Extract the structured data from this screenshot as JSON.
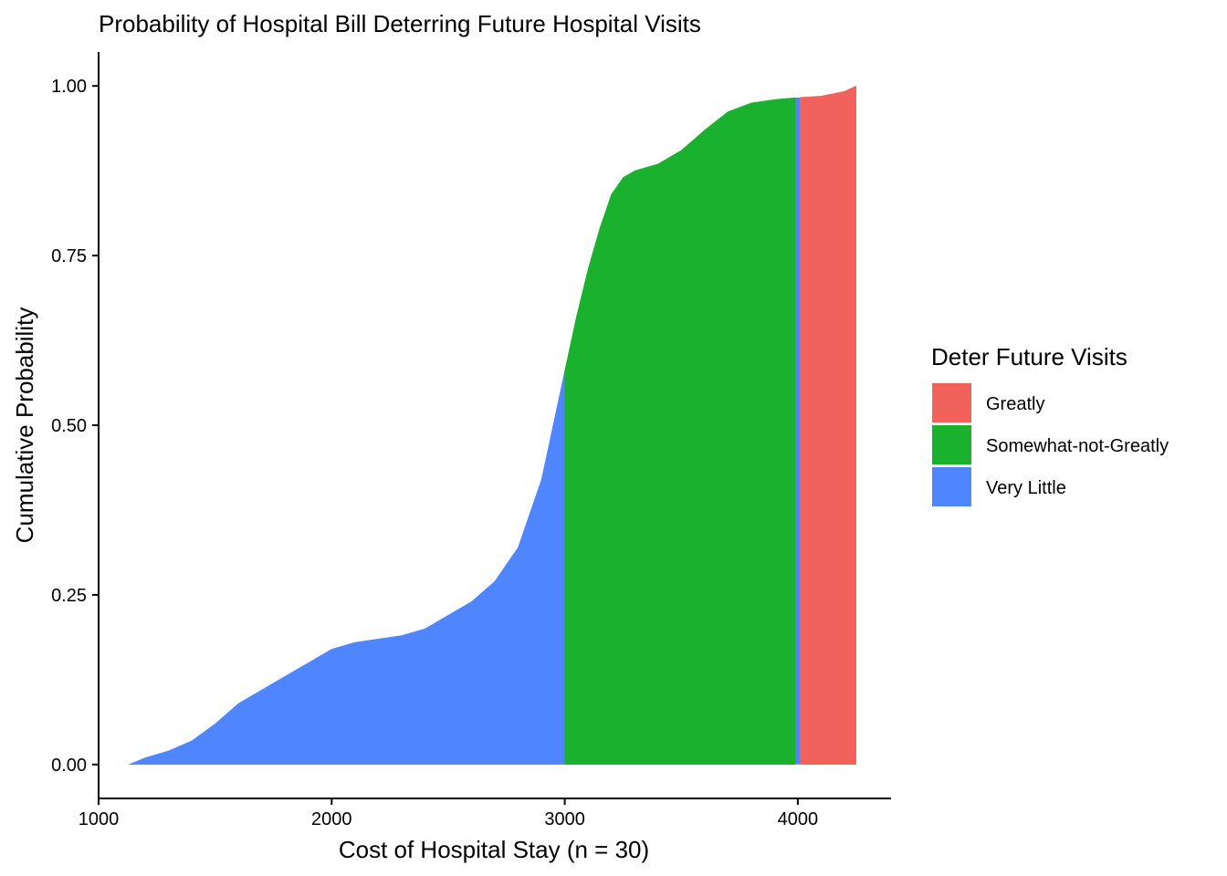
{
  "chart_data": {
    "type": "area",
    "title": "Probability of Hospital Bill Deterring Future Hospital Visits",
    "xlabel": "Cost of Hospital Stay (n = 30)",
    "ylabel": "Cumulative Probability",
    "xlim": [
      1000,
      4400
    ],
    "ylim": [
      -0.05,
      1.05
    ],
    "x_ticks": [
      1000,
      2000,
      3000,
      4000
    ],
    "x_tick_labels": [
      "1000",
      "2000",
      "3000",
      "4000"
    ],
    "y_ticks": [
      0,
      0.25,
      0.5,
      0.75,
      1.0
    ],
    "y_tick_labels": [
      "0.00",
      "0.25",
      "0.50",
      "0.75",
      "1.00"
    ],
    "grid": false,
    "legend": {
      "title": "Deter Future Visits",
      "position": "right",
      "entries": [
        "Greatly",
        "Somewhat-not-Greatly",
        "Very Little"
      ]
    },
    "curve": {
      "x": [
        1130,
        1200,
        1300,
        1400,
        1500,
        1600,
        1700,
        1800,
        1900,
        2000,
        2100,
        2200,
        2300,
        2400,
        2500,
        2600,
        2700,
        2800,
        2900,
        3000,
        3050,
        3100,
        3150,
        3200,
        3250,
        3300,
        3400,
        3500,
        3600,
        3700,
        3800,
        3900,
        4000,
        4100,
        4200,
        4250
      ],
      "y": [
        0.0,
        0.01,
        0.02,
        0.035,
        0.06,
        0.09,
        0.11,
        0.13,
        0.15,
        0.17,
        0.18,
        0.185,
        0.19,
        0.2,
        0.22,
        0.24,
        0.27,
        0.32,
        0.42,
        0.58,
        0.66,
        0.73,
        0.79,
        0.84,
        0.865,
        0.875,
        0.885,
        0.905,
        0.935,
        0.962,
        0.975,
        0.98,
        0.983,
        0.985,
        0.992,
        1.0
      ]
    },
    "series": [
      {
        "name": "Very Little",
        "color": "#4F86FF",
        "x_range": [
          1130,
          3000
        ]
      },
      {
        "name": "Somewhat-not-Greatly",
        "color": "#1AB12F",
        "x_range": [
          3000,
          3990
        ]
      },
      {
        "name": "Greatly",
        "color": "#F2625C",
        "x_range": [
          4010,
          4250
        ]
      }
    ],
    "boundary_color": "#4F86FF"
  }
}
